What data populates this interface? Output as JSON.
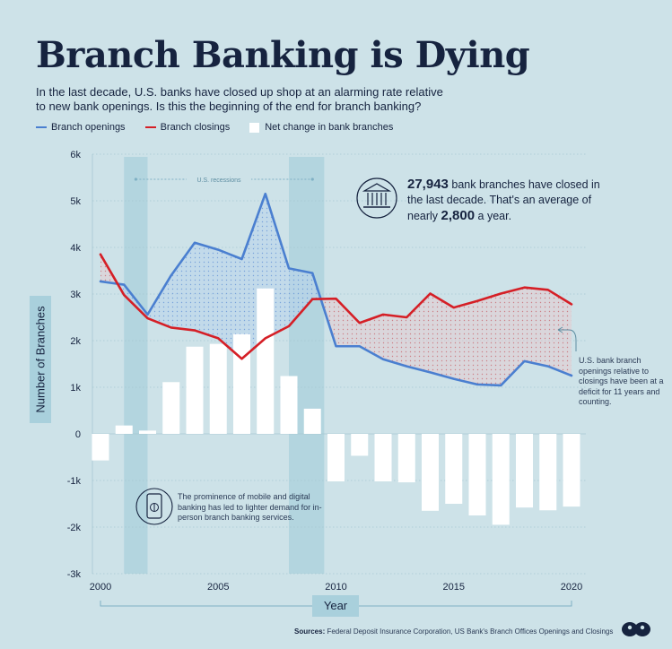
{
  "header": {
    "title": "Branch Banking is Dying",
    "subtitle": "In the last decade, U.S. banks have closed up shop at an alarming rate relative to new bank openings. Is this the beginning of the end for branch banking?"
  },
  "legend": {
    "openings": "Branch openings",
    "closings": "Branch closings",
    "net": "Net change in bank branches"
  },
  "annotations": {
    "recessions": "U.S. recessions",
    "callout_num1": "27,943",
    "callout_text1": " bank branches have closed in the last decade. That's an average of nearly ",
    "callout_num2": "2,800",
    "callout_text2": " a year.",
    "deficit_note": "U.S. bank branch openings relative to closings have been at a deficit for 11 years and counting.",
    "mobile_note": "The prominence of mobile and digital banking has led to lighter demand for in-person branch banking services."
  },
  "sources": {
    "label": "Sources:",
    "text": "Federal Deposit Insurance Corporation, US Bank's Branch Offices Openings and Closings"
  },
  "colors": {
    "openings": "#4a7fd0",
    "closings": "#d51f26",
    "net": "#ffffff",
    "background": "#cde2e8",
    "recession_band": "#a9d0dc"
  },
  "chart_data": {
    "type": "line",
    "xlabel": "Year",
    "ylabel": "Number of Branches",
    "x": [
      2000,
      2001,
      2002,
      2003,
      2004,
      2005,
      2006,
      2007,
      2008,
      2009,
      2010,
      2011,
      2012,
      2013,
      2014,
      2015,
      2016,
      2017,
      2018,
      2019,
      2020
    ],
    "xticks": [
      "2000",
      "2005",
      "2010",
      "2015",
      "2020"
    ],
    "xlim": [
      2000,
      2020
    ],
    "ylim": [
      -3000,
      6000
    ],
    "yticks": [
      {
        "v": 6000,
        "t": "6k"
      },
      {
        "v": 5000,
        "t": "5k"
      },
      {
        "v": 4000,
        "t": "4k"
      },
      {
        "v": 3000,
        "t": "3k"
      },
      {
        "v": 2000,
        "t": "2k"
      },
      {
        "v": 1000,
        "t": "1k"
      },
      {
        "v": 0,
        "t": "0"
      },
      {
        "v": -1000,
        "t": "-1k"
      },
      {
        "v": -2000,
        "t": "-2k"
      },
      {
        "v": -3000,
        "t": "-3k"
      }
    ],
    "recessions": [
      [
        2001,
        2002
      ],
      [
        2008,
        2009.5
      ]
    ],
    "series": [
      {
        "name": "Branch openings",
        "type": "line",
        "values": [
          3270,
          3200,
          2560,
          3400,
          4100,
          3950,
          3750,
          5150,
          3550,
          3450,
          1880,
          1880,
          1600,
          1450,
          1320,
          1180,
          1060,
          1040,
          1560,
          1450,
          1250
        ]
      },
      {
        "name": "Branch closings",
        "type": "line",
        "values": [
          3850,
          2980,
          2480,
          2280,
          2220,
          2050,
          1610,
          2050,
          2310,
          2890,
          2900,
          2380,
          2560,
          2500,
          3010,
          2710,
          2850,
          3010,
          3140,
          3090,
          2780
        ]
      },
      {
        "name": "Net change in bank branches",
        "type": "bar",
        "values": [
          -570,
          180,
          70,
          1110,
          1870,
          1930,
          2140,
          3120,
          1240,
          540,
          -1020,
          -470,
          -1020,
          -1040,
          -1650,
          -1500,
          -1750,
          -1950,
          -1580,
          -1640,
          -1560
        ]
      }
    ]
  }
}
